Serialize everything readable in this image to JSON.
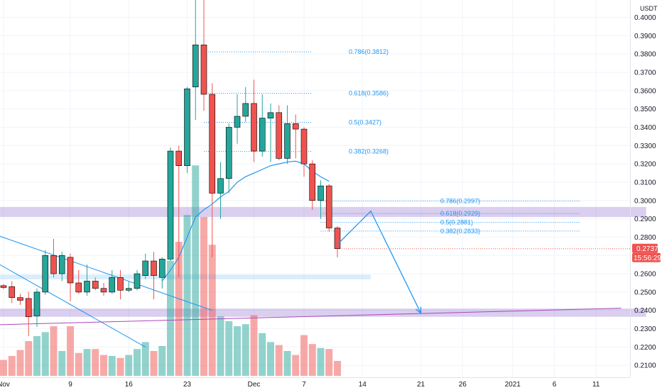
{
  "chart_data": {
    "type": "candlestick",
    "currency": "USDT",
    "ylim": [
      0.2035,
      0.4095
    ],
    "y_ticks": [
      "0.4000",
      "0.3900",
      "0.3800",
      "0.3700",
      "0.3600",
      "0.3500",
      "0.3400",
      "0.3300",
      "0.3200",
      "0.3100",
      "0.3000",
      "0.2900",
      "0.2800",
      "0.2700",
      "0.2600",
      "0.2500",
      "0.2400",
      "0.2300",
      "0.2200",
      "0.2100"
    ],
    "x_ticks": [
      {
        "label": "Nov",
        "slot": 0
      },
      {
        "label": "9",
        "slot": 8
      },
      {
        "label": "16",
        "slot": 15
      },
      {
        "label": "23",
        "slot": 22
      },
      {
        "label": "Dec",
        "slot": 30
      },
      {
        "label": "7",
        "slot": 36
      },
      {
        "label": "14",
        "slot": 43
      },
      {
        "label": "21",
        "slot": 50
      },
      {
        "label": "26",
        "slot": 55
      },
      {
        "label": "2021",
        "slot": 61
      },
      {
        "label": "6",
        "slot": 66
      },
      {
        "label": "11",
        "slot": 71
      }
    ],
    "candles": [
      {
        "o": 0.2535,
        "h": 0.2545,
        "l": 0.2515,
        "c": 0.2525,
        "v": 0.016
      },
      {
        "o": 0.253,
        "h": 0.256,
        "l": 0.244,
        "c": 0.247,
        "v": 0.02
      },
      {
        "o": 0.247,
        "h": 0.249,
        "l": 0.243,
        "c": 0.2455,
        "v": 0.026
      },
      {
        "o": 0.2465,
        "h": 0.25,
        "l": 0.226,
        "c": 0.2365,
        "v": 0.035
      },
      {
        "o": 0.237,
        "h": 0.252,
        "l": 0.231,
        "c": 0.25,
        "v": 0.04
      },
      {
        "o": 0.25,
        "h": 0.273,
        "l": 0.2485,
        "c": 0.27,
        "v": 0.044
      },
      {
        "o": 0.27,
        "h": 0.279,
        "l": 0.258,
        "c": 0.26,
        "v": 0.05
      },
      {
        "o": 0.26,
        "h": 0.272,
        "l": 0.256,
        "c": 0.27,
        "v": 0.025
      },
      {
        "o": 0.269,
        "h": 0.271,
        "l": 0.245,
        "c": 0.255,
        "v": 0.05
      },
      {
        "o": 0.255,
        "h": 0.262,
        "l": 0.249,
        "c": 0.25,
        "v": 0.023
      },
      {
        "o": 0.25,
        "h": 0.265,
        "l": 0.248,
        "c": 0.256,
        "v": 0.027
      },
      {
        "o": 0.256,
        "h": 0.258,
        "l": 0.251,
        "c": 0.252,
        "v": 0.027
      },
      {
        "o": 0.252,
        "h": 0.255,
        "l": 0.248,
        "c": 0.25,
        "v": 0.021
      },
      {
        "o": 0.25,
        "h": 0.262,
        "l": 0.249,
        "c": 0.258,
        "v": 0.02
      },
      {
        "o": 0.258,
        "h": 0.262,
        "l": 0.246,
        "c": 0.251,
        "v": 0.018
      },
      {
        "o": 0.251,
        "h": 0.256,
        "l": 0.25,
        "c": 0.252,
        "v": 0.021
      },
      {
        "o": 0.252,
        "h": 0.262,
        "l": 0.251,
        "c": 0.26,
        "v": 0.027
      },
      {
        "o": 0.259,
        "h": 0.271,
        "l": 0.257,
        "c": 0.267,
        "v": 0.034
      },
      {
        "o": 0.267,
        "h": 0.272,
        "l": 0.246,
        "c": 0.259,
        "v": 0.025
      },
      {
        "o": 0.258,
        "h": 0.269,
        "l": 0.252,
        "c": 0.268,
        "v": 0.03
      },
      {
        "o": 0.268,
        "h": 0.329,
        "l": 0.267,
        "c": 0.327,
        "v": 0.116
      },
      {
        "o": 0.327,
        "h": 0.33,
        "l": 0.258,
        "c": 0.319,
        "v": 0.135
      },
      {
        "o": 0.319,
        "h": 0.362,
        "l": 0.315,
        "c": 0.361,
        "v": 0.162
      },
      {
        "o": 0.362,
        "h": 0.42,
        "l": 0.344,
        "c": 0.385,
        "v": 0.212
      },
      {
        "o": 0.385,
        "h": 0.42,
        "l": 0.349,
        "c": 0.358,
        "v": 0.16
      },
      {
        "o": 0.358,
        "h": 0.364,
        "l": 0.269,
        "c": 0.304,
        "v": 0.132
      },
      {
        "o": 0.304,
        "h": 0.321,
        "l": 0.29,
        "c": 0.312,
        "v": 0.06
      },
      {
        "o": 0.312,
        "h": 0.342,
        "l": 0.304,
        "c": 0.34,
        "v": 0.055
      },
      {
        "o": 0.34,
        "h": 0.358,
        "l": 0.331,
        "c": 0.346,
        "v": 0.05
      },
      {
        "o": 0.346,
        "h": 0.362,
        "l": 0.343,
        "c": 0.353,
        "v": 0.052
      },
      {
        "o": 0.353,
        "h": 0.366,
        "l": 0.321,
        "c": 0.327,
        "v": 0.061
      },
      {
        "o": 0.327,
        "h": 0.358,
        "l": 0.324,
        "c": 0.345,
        "v": 0.043
      },
      {
        "o": 0.345,
        "h": 0.353,
        "l": 0.321,
        "c": 0.348,
        "v": 0.034
      },
      {
        "o": 0.348,
        "h": 0.352,
        "l": 0.322,
        "c": 0.323,
        "v": 0.031
      },
      {
        "o": 0.323,
        "h": 0.352,
        "l": 0.32,
        "c": 0.342,
        "v": 0.025
      },
      {
        "o": 0.342,
        "h": 0.347,
        "l": 0.323,
        "c": 0.339,
        "v": 0.021
      },
      {
        "o": 0.339,
        "h": 0.34,
        "l": 0.313,
        "c": 0.32,
        "v": 0.041
      },
      {
        "o": 0.32,
        "h": 0.322,
        "l": 0.295,
        "c": 0.3,
        "v": 0.032
      },
      {
        "o": 0.3,
        "h": 0.311,
        "l": 0.29,
        "c": 0.308,
        "v": 0.028
      },
      {
        "o": 0.308,
        "h": 0.309,
        "l": 0.283,
        "c": 0.285,
        "v": 0.027
      },
      {
        "o": 0.285,
        "h": 0.286,
        "l": 0.269,
        "c": 0.2737,
        "v": 0.015
      }
    ],
    "moving_average": [
      {
        "slot": 19,
        "v": 0.256
      },
      {
        "slot": 20,
        "v": 0.262
      },
      {
        "slot": 21,
        "v": 0.269
      },
      {
        "slot": 22,
        "v": 0.28
      },
      {
        "slot": 23,
        "v": 0.291
      },
      {
        "slot": 24,
        "v": 0.295
      },
      {
        "slot": 25,
        "v": 0.298
      },
      {
        "slot": 26,
        "v": 0.302
      },
      {
        "slot": 27,
        "v": 0.305
      },
      {
        "slot": 28,
        "v": 0.31
      },
      {
        "slot": 29,
        "v": 0.313
      },
      {
        "slot": 30,
        "v": 0.315
      },
      {
        "slot": 31,
        "v": 0.317
      },
      {
        "slot": 32,
        "v": 0.319
      },
      {
        "slot": 33,
        "v": 0.32
      },
      {
        "slot": 34,
        "v": 0.321
      },
      {
        "slot": 35,
        "v": 0.3215
      },
      {
        "slot": 36,
        "v": 0.32
      },
      {
        "slot": 37,
        "v": 0.316
      },
      {
        "slot": 38,
        "v": 0.313
      },
      {
        "slot": 39,
        "v": 0.3105
      }
    ],
    "fib_levels": [
      {
        "label": "0.786(0.3812)",
        "price": 0.3812,
        "from_slot": 24,
        "to_slot": 37
      },
      {
        "label": "0.618(0.3586)",
        "price": 0.3586,
        "from_slot": 24,
        "to_slot": 37
      },
      {
        "label": "0.5(0.3427)",
        "price": 0.3427,
        "from_slot": 24,
        "to_slot": 37
      },
      {
        "label": "0.382(0.3268)",
        "price": 0.3268,
        "from_slot": 24,
        "to_slot": 37
      },
      {
        "label": "0.786(0.2997)",
        "price": 0.2997,
        "from_slot": 38,
        "to_slot": 69
      },
      {
        "label": "0.618(0.2929)",
        "price": 0.2929,
        "from_slot": 38,
        "to_slot": 69
      },
      {
        "label": "0.5(0.2881)",
        "price": 0.2881,
        "from_slot": 38,
        "to_slot": 69
      },
      {
        "label": "0.382(0.2833)",
        "price": 0.2833,
        "from_slot": 38,
        "to_slot": 69
      }
    ],
    "zones": [
      {
        "low": 0.291,
        "high": 0.2965,
        "from_slot": -2,
        "to_slot": 77,
        "color": "#9575cd"
      },
      {
        "low": 0.257,
        "high": 0.2595,
        "from_slot": -2,
        "to_slot": 44,
        "color": "#90caf9"
      },
      {
        "low": 0.2365,
        "high": 0.241,
        "from_slot": -2,
        "to_slot": 77,
        "color": "#9575cd"
      }
    ],
    "trendlines": [
      {
        "p1": {
          "slot": -2,
          "v": 0.283
        },
        "p2": {
          "slot": 25,
          "v": 0.24
        },
        "color": "#2196f3"
      },
      {
        "p1": {
          "slot": -2,
          "v": 0.269
        },
        "p2": {
          "slot": 17,
          "v": 0.22
        },
        "color": "#2196f3"
      },
      {
        "p1": {
          "slot": -2,
          "v": 0.232
        },
        "p2": {
          "slot": 74,
          "v": 0.2412
        },
        "color": "#ab47bc"
      }
    ],
    "projection": [
      {
        "slot": 40,
        "v": 0.276
      },
      {
        "slot": 44,
        "v": 0.2942
      },
      {
        "slot": 50,
        "v": 0.2385
      }
    ],
    "last_price": {
      "label": "0.2737",
      "price": 0.2737
    },
    "countdown": "15:56:29",
    "colors": {
      "up": "#26a69a",
      "down": "#ef5350",
      "fib": "#2196f3",
      "ma": "#2196f3",
      "projection": "#2196f3"
    }
  }
}
